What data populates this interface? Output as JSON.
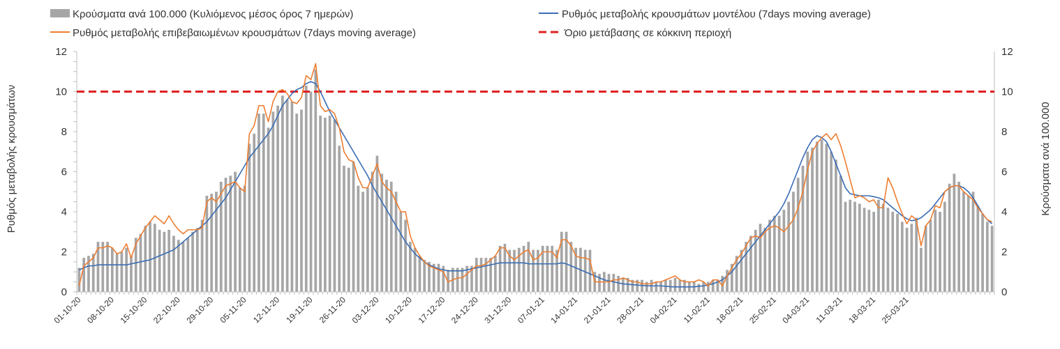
{
  "chart_data": {
    "type": "bar",
    "x_start": "01-10-20",
    "x_tick_labels": [
      "01-10-20",
      "08-10-20",
      "15-10-20",
      "22-10-20",
      "29-10-20",
      "05-11-20",
      "12-11-20",
      "19-11-20",
      "26-11-20",
      "03-12-20",
      "10-12-20",
      "17-12-20",
      "24-12-20",
      "31-12-20",
      "07-01-21",
      "14-01-21",
      "21-01-21",
      "28-01-21",
      "04-02-21",
      "11-02-21",
      "18-02-21",
      "25-02-21",
      "04-03-21",
      "11-03-21",
      "18-03-21",
      "25-03-21"
    ],
    "y_left_label": "Ρυθμός μεταβολής κρουσμάτων",
    "y_right_label": "Κρούσματα ανά 100.000",
    "ylim": [
      0,
      12
    ],
    "y_ticks": [
      "0",
      "2",
      "4",
      "6",
      "8",
      "10",
      "12"
    ],
    "legend": {
      "bars": "Κρούσματα ανά 100.000 (Κυλιόμενος μέσος όρος 7 ημερών)",
      "model": "Ρυθμός μεταβολής κρουσμάτων μοντέλου (7days moving average)",
      "confirmed": "Ρυθμός μεταβολής επιβεβαιωμένων κρουσμάτων (7days moving average)",
      "threshold": "Όριο μετάβασης σε κόκκινη περιοχή"
    },
    "colors": {
      "bars": "#a6a6a6",
      "model": "#3a6cb4",
      "confirmed": "#ed7d31",
      "threshold": "#e02020"
    },
    "threshold_value": 10,
    "series": [
      {
        "name": "Κρούσματα ανά 100.000 (Κυλιόμενος μέσος όρος 7 ημερών)",
        "type": "bar",
        "values": [
          1.2,
          1.7,
          1.8,
          1.9,
          2.5,
          2.5,
          2.5,
          2.2,
          1.9,
          2.0,
          2.2,
          1.8,
          2.7,
          2.9,
          3.3,
          3.5,
          3.4,
          3.1,
          3.0,
          3.1,
          2.8,
          2.6,
          2.5,
          2.7,
          3.0,
          3.2,
          3.6,
          4.8,
          4.9,
          5.0,
          5.5,
          5.7,
          5.8,
          6.0,
          5.2,
          5.3,
          7.4,
          7.9,
          8.9,
          8.9,
          8.2,
          9.0,
          9.3,
          9.8,
          9.6,
          9.5,
          8.9,
          9.1,
          10.3,
          10.0,
          11.1,
          8.8,
          8.7,
          8.8,
          8.6,
          7.3,
          6.3,
          6.2,
          6.5,
          5.3,
          5.0,
          5.2,
          6.0,
          6.8,
          5.9,
          5.6,
          5.5,
          5.0,
          4.0,
          3.6,
          2.5,
          2.2,
          1.8,
          1.6,
          1.5,
          1.4,
          1.4,
          1.3,
          1.1,
          1.2,
          1.2,
          1.2,
          1.3,
          1.3,
          1.7,
          1.7,
          1.7,
          1.7,
          1.8,
          2.3,
          2.4,
          2.1,
          2.1,
          2.2,
          2.3,
          2.5,
          2.1,
          2.1,
          2.3,
          2.3,
          2.3,
          2.1,
          3.0,
          3.0,
          2.5,
          2.2,
          2.2,
          2.1,
          2.1,
          1.0,
          0.9,
          1.0,
          0.9,
          0.9,
          0.8,
          0.7,
          0.7,
          0.6,
          0.6,
          0.6,
          0.5,
          0.6,
          0.5,
          0.5,
          0.6,
          0.6,
          0.7,
          0.6,
          0.6,
          0.5,
          0.5,
          0.4,
          0.5,
          0.5,
          0.6,
          0.6,
          0.8,
          1.1,
          1.4,
          1.8,
          2.1,
          2.5,
          2.8,
          3.1,
          3.4,
          3.2,
          3.6,
          3.8,
          3.8,
          4.1,
          4.5,
          5.0,
          5.7,
          6.3,
          7.0,
          7.2,
          7.5,
          7.6,
          7.4,
          7.0,
          6.6,
          5.8,
          4.5,
          4.6,
          4.5,
          4.4,
          4.2,
          4.1,
          4.0,
          4.6,
          4.4,
          4.2,
          4.0,
          3.9,
          3.5,
          3.2,
          3.4,
          3.7,
          2.2,
          3.3,
          3.6,
          4.1,
          4.0,
          4.5,
          5.4,
          5.9,
          5.5,
          5.0,
          4.8,
          5.0,
          4.3,
          3.9,
          3.5,
          3.3
        ]
      },
      {
        "name": "Ρυθμός μεταβολής επιβεβαιωμένων κρουσμάτων (7days moving average)",
        "type": "line",
        "values": [
          0.3,
          1.3,
          1.5,
          1.7,
          2.2,
          2.2,
          2.3,
          2.2,
          1.9,
          2.0,
          2.4,
          1.7,
          2.4,
          2.8,
          3.2,
          3.5,
          3.8,
          3.6,
          3.4,
          3.8,
          3.4,
          3.1,
          2.9,
          3.1,
          3.1,
          3.1,
          3.2,
          4.5,
          4.7,
          4.5,
          4.9,
          5.3,
          5.4,
          5.5,
          5.2,
          5.0,
          7.9,
          8.3,
          9.3,
          9.3,
          8.5,
          9.5,
          10.0,
          10.1,
          9.9,
          9.5,
          9.4,
          9.7,
          10.8,
          10.6,
          11.4,
          9.3,
          9.0,
          9.1,
          8.9,
          8.2,
          7.0,
          6.6,
          6.5,
          5.7,
          5.2,
          5.2,
          5.8,
          6.4,
          5.5,
          5.2,
          5.0,
          4.5,
          4.0,
          4.0,
          2.8,
          2.2,
          1.8,
          1.5,
          1.3,
          1.2,
          1.1,
          1.0,
          0.5,
          0.6,
          0.7,
          0.7,
          0.9,
          1.1,
          1.3,
          1.3,
          1.4,
          1.6,
          1.8,
          2.2,
          2.2,
          1.8,
          1.6,
          1.8,
          2.0,
          2.1,
          1.6,
          1.7,
          2.0,
          2.0,
          2.0,
          1.7,
          2.6,
          2.6,
          2.3,
          1.8,
          1.7,
          1.7,
          1.6,
          0.5,
          0.5,
          0.5,
          0.5,
          0.6,
          0.6,
          0.7,
          0.6,
          0.5,
          0.5,
          0.4,
          0.4,
          0.4,
          0.5,
          0.5,
          0.6,
          0.7,
          0.8,
          0.6,
          0.5,
          0.5,
          0.5,
          0.6,
          0.5,
          0.3,
          0.6,
          0.6,
          0.3,
          0.8,
          1.2,
          1.6,
          1.9,
          2.3,
          2.7,
          2.8,
          2.7,
          3.0,
          3.2,
          3.3,
          3.2,
          3.0,
          3.3,
          3.6,
          4.2,
          5.0,
          6.1,
          7.0,
          7.4,
          7.7,
          7.9,
          7.6,
          7.9,
          7.3,
          6.5,
          5.6,
          4.7,
          4.8,
          4.7,
          4.5,
          4.6,
          4.2,
          4.2,
          5.7,
          5.2,
          4.5,
          3.9,
          3.4,
          3.8,
          3.6,
          2.3,
          3.3,
          3.6,
          4.3,
          4.2,
          5.0,
          5.2,
          5.3,
          5.3,
          5.0,
          4.8,
          4.6,
          4.2,
          3.9,
          3.6,
          3.5
        ]
      },
      {
        "name": "Ρυθμός μεταβολής κρουσμάτων μοντέλου (7days moving average)",
        "type": "line",
        "values": [
          1.1,
          1.2,
          1.3,
          1.3,
          1.35,
          1.35,
          1.35,
          1.35,
          1.35,
          1.35,
          1.35,
          1.4,
          1.45,
          1.5,
          1.55,
          1.6,
          1.7,
          1.8,
          1.9,
          2.0,
          2.1,
          2.3,
          2.5,
          2.7,
          2.9,
          3.1,
          3.3,
          3.5,
          3.8,
          4.1,
          4.4,
          4.7,
          5.1,
          5.5,
          5.9,
          6.3,
          6.7,
          7.0,
          7.3,
          7.6,
          7.9,
          8.3,
          8.8,
          9.3,
          9.6,
          9.9,
          10.1,
          10.2,
          10.4,
          10.5,
          10.4,
          10.0,
          9.5,
          9.0,
          8.6,
          8.2,
          7.8,
          7.4,
          7.0,
          6.6,
          6.2,
          5.8,
          5.3,
          4.9,
          4.5,
          4.1,
          3.7,
          3.3,
          2.9,
          2.5,
          2.2,
          1.9,
          1.7,
          1.5,
          1.35,
          1.25,
          1.15,
          1.1,
          1.05,
          1.05,
          1.05,
          1.05,
          1.1,
          1.15,
          1.2,
          1.25,
          1.3,
          1.35,
          1.4,
          1.45,
          1.45,
          1.45,
          1.45,
          1.45,
          1.45,
          1.4,
          1.4,
          1.4,
          1.4,
          1.4,
          1.4,
          1.4,
          1.45,
          1.4,
          1.3,
          1.2,
          1.1,
          1.0,
          0.9,
          0.8,
          0.7,
          0.6,
          0.55,
          0.5,
          0.45,
          0.4,
          0.38,
          0.36,
          0.34,
          0.32,
          0.3,
          0.3,
          0.3,
          0.3,
          0.28,
          0.26,
          0.25,
          0.25,
          0.25,
          0.25,
          0.25,
          0.28,
          0.3,
          0.35,
          0.4,
          0.5,
          0.6,
          0.8,
          1.0,
          1.3,
          1.6,
          1.9,
          2.2,
          2.5,
          2.8,
          3.1,
          3.4,
          3.7,
          4.0,
          4.4,
          4.9,
          5.5,
          6.1,
          6.7,
          7.2,
          7.6,
          7.8,
          7.7,
          7.5,
          7.0,
          6.4,
          5.8,
          5.2,
          4.9,
          4.85,
          4.8,
          4.8,
          4.8,
          4.75,
          4.7,
          4.6,
          4.4,
          4.2,
          4.0,
          3.8,
          3.65,
          3.55,
          3.6,
          3.7,
          3.9,
          4.1,
          4.4,
          4.7,
          5.0,
          5.2,
          5.3,
          5.3,
          5.2,
          5.0,
          4.7,
          4.3,
          3.9,
          3.6,
          3.4
        ]
      }
    ],
    "grid": false,
    "legend_position": "top"
  }
}
